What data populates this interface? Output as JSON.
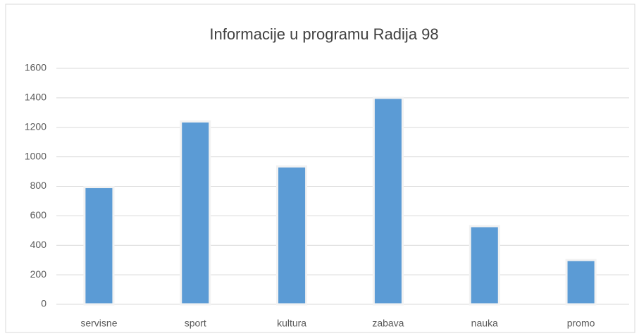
{
  "chart_data": {
    "type": "bar",
    "title": "Informacije u programu Radija 98",
    "categories": [
      "servisne",
      "sport",
      "kultura",
      "zabava",
      "nauka",
      "promo"
    ],
    "values": [
      795,
      1240,
      935,
      1400,
      530,
      300
    ],
    "color": "#5b9bd5",
    "ylim": [
      0,
      1600
    ],
    "yticks": [
      0,
      200,
      400,
      600,
      800,
      1000,
      1200,
      1400,
      1600
    ],
    "grid": true
  }
}
